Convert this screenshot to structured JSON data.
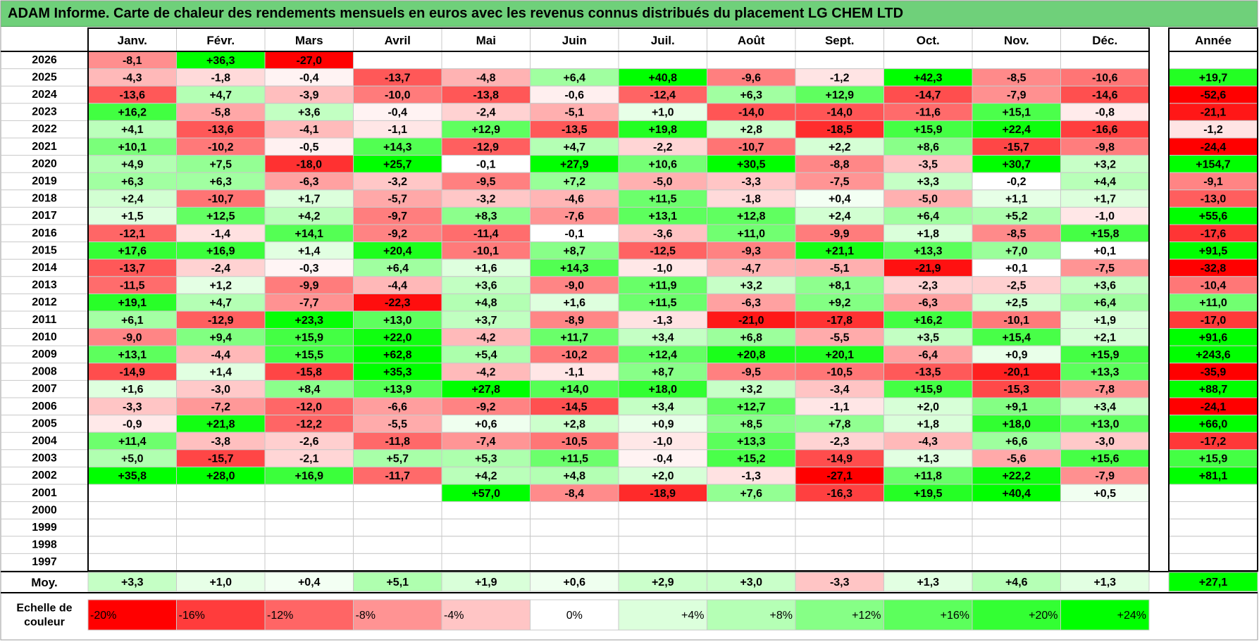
{
  "title": "ADAM Informe. Carte de chaleur des rendements mensuels en euros avec les revenus connus distribués du placement LG CHEM LTD",
  "chart_data": {
    "type": "heatmap",
    "months": [
      "Janv.",
      "Févr.",
      "Mars",
      "Avril",
      "Mai",
      "Juin",
      "Juil.",
      "Août",
      "Sept.",
      "Oct.",
      "Nov.",
      "Déc."
    ],
    "year_header": "Année",
    "rows": [
      {
        "year": "2026",
        "values": [
          -8.1,
          36.3,
          -27.0,
          null,
          null,
          null,
          null,
          null,
          null,
          null,
          null,
          null
        ],
        "annual": null
      },
      {
        "year": "2025",
        "values": [
          -4.3,
          -1.8,
          -0.4,
          -13.7,
          -4.8,
          6.4,
          40.8,
          -9.6,
          -1.2,
          42.3,
          -8.5,
          -10.6
        ],
        "annual": 19.7
      },
      {
        "year": "2024",
        "values": [
          -13.6,
          4.7,
          -3.9,
          -10.0,
          -13.8,
          -0.6,
          -12.4,
          6.3,
          12.9,
          -14.7,
          -7.9,
          -14.6
        ],
        "annual": -52.6
      },
      {
        "year": "2023",
        "values": [
          16.2,
          -5.8,
          3.6,
          -0.4,
          -2.4,
          -5.1,
          1.0,
          -14.0,
          -14.0,
          -11.6,
          15.1,
          -0.8
        ],
        "annual": -21.1
      },
      {
        "year": "2022",
        "values": [
          4.1,
          -13.6,
          -4.1,
          -1.1,
          12.9,
          -13.5,
          19.8,
          2.8,
          -18.5,
          15.9,
          22.4,
          -16.6
        ],
        "annual": -1.2
      },
      {
        "year": "2021",
        "values": [
          10.1,
          -10.2,
          -0.5,
          14.3,
          -12.9,
          4.7,
          -2.2,
          -10.7,
          2.2,
          8.6,
          -15.7,
          -9.8
        ],
        "annual": -24.4
      },
      {
        "year": "2020",
        "values": [
          4.9,
          7.5,
          -18.0,
          25.7,
          -0.1,
          27.9,
          10.6,
          30.5,
          -8.8,
          -3.5,
          30.7,
          3.2
        ],
        "annual": 154.7
      },
      {
        "year": "2019",
        "values": [
          6.3,
          6.3,
          -6.3,
          -3.2,
          -9.5,
          7.2,
          -5.0,
          -3.3,
          -7.5,
          3.3,
          -0.2,
          4.4
        ],
        "annual": -9.1
      },
      {
        "year": "2018",
        "values": [
          2.4,
          -10.7,
          1.7,
          -5.7,
          -3.2,
          -4.6,
          11.5,
          -1.8,
          0.4,
          -5.0,
          1.1,
          1.7
        ],
        "annual": -13.0
      },
      {
        "year": "2017",
        "values": [
          1.5,
          12.5,
          4.2,
          -9.7,
          8.3,
          -7.6,
          13.1,
          12.8,
          2.4,
          6.4,
          5.2,
          -1.0
        ],
        "annual": 55.6
      },
      {
        "year": "2016",
        "values": [
          -12.1,
          -1.4,
          14.1,
          -9.2,
          -11.4,
          -0.1,
          -3.6,
          11.0,
          -9.9,
          1.8,
          -8.5,
          15.8
        ],
        "annual": -17.6
      },
      {
        "year": "2015",
        "values": [
          17.6,
          16.9,
          1.4,
          20.4,
          -10.1,
          8.7,
          -12.5,
          -9.3,
          21.1,
          13.3,
          7.0,
          0.1
        ],
        "annual": 91.5
      },
      {
        "year": "2014",
        "values": [
          -13.7,
          -2.4,
          -0.3,
          6.4,
          1.6,
          14.3,
          -1.0,
          -4.7,
          -5.1,
          -21.9,
          0.1,
          -7.5
        ],
        "annual": -32.8
      },
      {
        "year": "2013",
        "values": [
          -11.5,
          1.2,
          -9.9,
          -4.4,
          3.6,
          -9.0,
          11.9,
          3.2,
          8.1,
          -2.3,
          -2.5,
          3.6
        ],
        "annual": -10.4
      },
      {
        "year": "2012",
        "values": [
          19.1,
          4.7,
          -7.7,
          -22.3,
          4.8,
          1.6,
          11.5,
          -6.3,
          9.2,
          -6.3,
          2.5,
          6.4
        ],
        "annual": 11.0
      },
      {
        "year": "2011",
        "values": [
          6.1,
          -12.9,
          23.3,
          13.0,
          3.7,
          -8.9,
          -1.3,
          -21.0,
          -17.8,
          16.2,
          -10.1,
          1.9
        ],
        "annual": -17.0
      },
      {
        "year": "2010",
        "values": [
          -9.0,
          9.4,
          15.9,
          22.0,
          -4.2,
          11.7,
          3.4,
          6.8,
          -5.5,
          3.5,
          15.4,
          2.1
        ],
        "annual": 91.6
      },
      {
        "year": "2009",
        "values": [
          13.1,
          -4.4,
          15.5,
          62.8,
          5.4,
          -10.2,
          12.4,
          20.8,
          20.1,
          -6.4,
          0.9,
          15.9
        ],
        "annual": 243.6
      },
      {
        "year": "2008",
        "values": [
          -14.9,
          1.4,
          -15.8,
          35.3,
          -4.2,
          -1.1,
          8.7,
          -9.5,
          -10.5,
          -13.5,
          -20.1,
          13.3
        ],
        "annual": -35.9
      },
      {
        "year": "2007",
        "values": [
          1.6,
          -3.0,
          8.4,
          13.9,
          27.8,
          14.0,
          18.0,
          3.2,
          -3.4,
          15.9,
          -15.3,
          -7.8
        ],
        "annual": 88.7
      },
      {
        "year": "2006",
        "values": [
          -3.3,
          -7.2,
          -12.0,
          -6.6,
          -9.2,
          -14.5,
          3.4,
          12.7,
          -1.1,
          2.0,
          9.1,
          3.4
        ],
        "annual": -24.1
      },
      {
        "year": "2005",
        "values": [
          -0.9,
          21.8,
          -12.2,
          -5.5,
          0.6,
          2.8,
          0.9,
          8.5,
          7.8,
          1.8,
          18.0,
          13.0
        ],
        "annual": 66.0
      },
      {
        "year": "2004",
        "values": [
          11.4,
          -3.8,
          -2.6,
          -11.8,
          -7.4,
          -10.5,
          -1.0,
          13.3,
          -2.3,
          -4.3,
          6.6,
          -3.0
        ],
        "annual": -17.2
      },
      {
        "year": "2003",
        "values": [
          5.0,
          -15.7,
          -2.1,
          5.7,
          5.3,
          11.5,
          -0.4,
          15.2,
          -14.9,
          1.3,
          -5.6,
          15.6
        ],
        "annual": 15.9
      },
      {
        "year": "2002",
        "values": [
          35.8,
          28.0,
          16.9,
          -11.7,
          4.2,
          4.8,
          2.0,
          -1.3,
          -27.1,
          11.8,
          22.2,
          -7.9
        ],
        "annual": 81.1
      },
      {
        "year": "2001",
        "values": [
          null,
          null,
          null,
          null,
          57.0,
          -8.4,
          -18.9,
          7.6,
          -16.3,
          19.5,
          40.4,
          0.5
        ],
        "annual": null
      },
      {
        "year": "2000",
        "values": [
          null,
          null,
          null,
          null,
          null,
          null,
          null,
          null,
          null,
          null,
          null,
          null
        ],
        "annual": null
      },
      {
        "year": "1999",
        "values": [
          null,
          null,
          null,
          null,
          null,
          null,
          null,
          null,
          null,
          null,
          null,
          null
        ],
        "annual": null
      },
      {
        "year": "1998",
        "values": [
          null,
          null,
          null,
          null,
          null,
          null,
          null,
          null,
          null,
          null,
          null,
          null
        ],
        "annual": null
      },
      {
        "year": "1997",
        "values": [
          null,
          null,
          null,
          null,
          null,
          null,
          null,
          null,
          null,
          null,
          null,
          null
        ],
        "annual": null
      }
    ],
    "average": {
      "label": "Moy.",
      "values": [
        3.3,
        1.0,
        0.4,
        5.1,
        1.9,
        0.6,
        2.9,
        3.0,
        -3.3,
        1.3,
        4.6,
        1.3
      ],
      "annual": 27.1
    },
    "scale": {
      "label_line1": "Echelle de",
      "label_line2": "couleur",
      "items": [
        {
          "label": "-20%",
          "color": "#ff0000"
        },
        {
          "label": "-16%",
          "color": "#ff3c3c"
        },
        {
          "label": "-12%",
          "color": "#ff6565"
        },
        {
          "label": "-8%",
          "color": "#ff9393"
        },
        {
          "label": "-4%",
          "color": "#ffc5c5"
        },
        {
          "label": "0%",
          "color": "#ffffff"
        },
        {
          "label": "+4%",
          "color": "#dcffdc"
        },
        {
          "label": "+8%",
          "color": "#b5ffb5"
        },
        {
          "label": "+12%",
          "color": "#86ff86"
        },
        {
          "label": "+16%",
          "color": "#5cff5c"
        },
        {
          "label": "+20%",
          "color": "#33ff33"
        },
        {
          "label": "+24%",
          "color": "#00ff00"
        }
      ]
    }
  }
}
